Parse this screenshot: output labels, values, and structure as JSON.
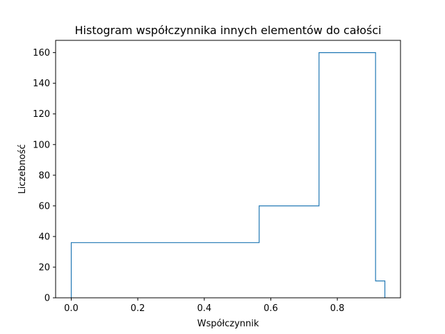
{
  "chart_data": {
    "type": "histogram",
    "title": "Histogram współczynnika innych elementów do całości",
    "xlabel": "Współczynnik",
    "ylabel": "Liczebność",
    "xlim": [
      -0.047,
      0.99
    ],
    "ylim": [
      0,
      168
    ],
    "xticks": [
      0.0,
      0.2,
      0.4,
      0.6,
      0.8
    ],
    "xtick_labels": [
      "0.0",
      "0.2",
      "0.4",
      "0.6",
      "0.8"
    ],
    "yticks": [
      0,
      20,
      40,
      60,
      80,
      100,
      120,
      140,
      160
    ],
    "ytick_labels": [
      "0",
      "20",
      "40",
      "60",
      "80",
      "100",
      "120",
      "140",
      "160"
    ],
    "histtype": "step",
    "bin_edges": [
      0.0,
      0.565,
      0.745,
      0.915,
      0.943
    ],
    "counts": [
      36,
      60,
      160,
      11
    ],
    "grid": false,
    "legend": "none",
    "colors": {
      "line": "#1f77b4",
      "axes": "#000000",
      "background": "#ffffff"
    }
  }
}
